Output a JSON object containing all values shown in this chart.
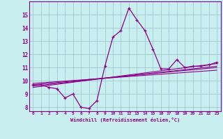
{
  "xlabel": "Windchill (Refroidissement éolien,°C)",
  "bg_color": "#c8eef0",
  "line_color": "#8B008B",
  "grid_color": "#a0c8d0",
  "xlim": [
    -0.5,
    23.5
  ],
  "ylim": [
    7.7,
    16.0
  ],
  "yticks": [
    8,
    9,
    10,
    11,
    12,
    13,
    14,
    15
  ],
  "xticks": [
    0,
    1,
    2,
    3,
    4,
    5,
    6,
    7,
    8,
    9,
    10,
    11,
    12,
    13,
    14,
    15,
    16,
    17,
    18,
    19,
    20,
    21,
    22,
    23
  ],
  "main_line_x": [
    0,
    1,
    2,
    3,
    4,
    5,
    6,
    7,
    8,
    9,
    10,
    11,
    12,
    13,
    14,
    15,
    16,
    17,
    18,
    19,
    20,
    21,
    22,
    23
  ],
  "main_line_y": [
    9.7,
    9.7,
    9.5,
    9.4,
    8.7,
    9.0,
    8.0,
    7.9,
    8.5,
    11.1,
    13.3,
    13.8,
    15.5,
    14.6,
    13.8,
    12.4,
    10.9,
    10.9,
    11.6,
    11.0,
    11.1,
    11.1,
    11.2,
    11.4
  ],
  "reg_lines": [
    {
      "x": [
        0,
        23
      ],
      "y": [
        9.5,
        11.3
      ]
    },
    {
      "x": [
        0,
        23
      ],
      "y": [
        9.6,
        11.1
      ]
    },
    {
      "x": [
        0,
        23
      ],
      "y": [
        9.7,
        11.0
      ]
    },
    {
      "x": [
        0,
        23
      ],
      "y": [
        9.8,
        10.8
      ]
    }
  ]
}
